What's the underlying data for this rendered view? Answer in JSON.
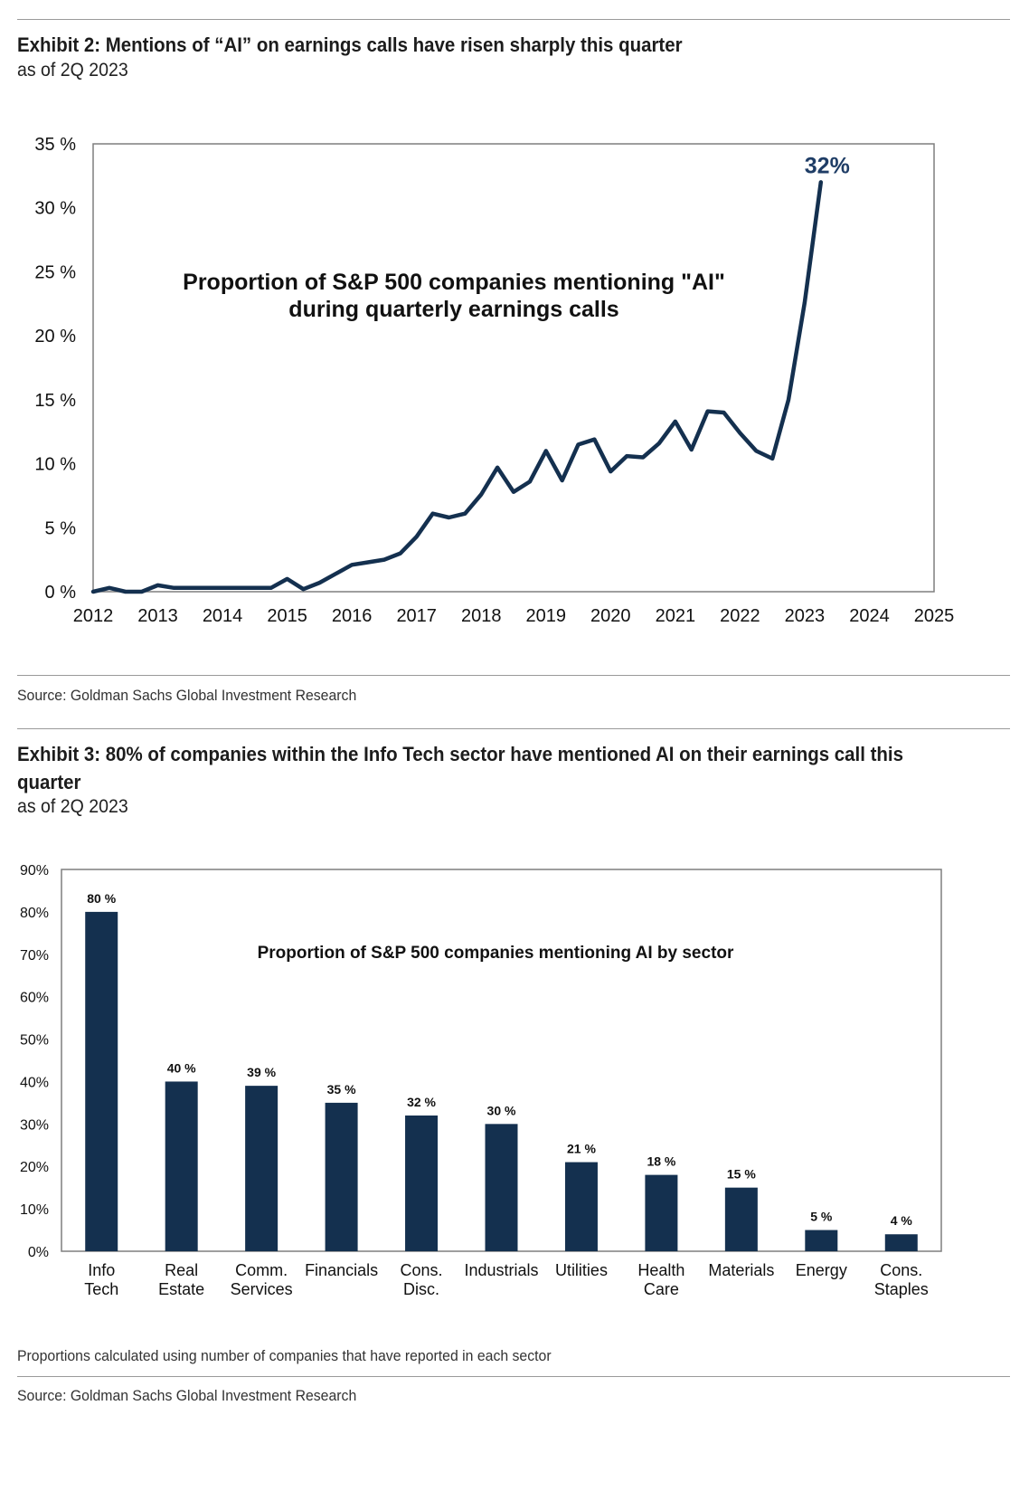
{
  "exhibit2": {
    "title": "Exhibit 2: Mentions of “AI” on earnings calls have risen sharply this quarter",
    "subtitle": "as of 2Q 2023",
    "source": "Source: Goldman Sachs Global Investment Research"
  },
  "exhibit3": {
    "title": "Exhibit 3: 80% of companies within the Info Tech sector have mentioned AI on their earnings call this quarter",
    "subtitle": "as of 2Q 2023",
    "note": "Proportions calculated using number of companies that have reported in each sector",
    "source": "Source: Goldman Sachs Global Investment Research"
  },
  "colors": {
    "line": "#14304f",
    "bar": "#14304f",
    "axis": "#7f7f7f"
  },
  "chart_data": [
    {
      "type": "line",
      "title_lines": [
        "Proportion of S&P 500 companies mentioning \"AI\"",
        "during quarterly earnings calls"
      ],
      "annotation": "32%",
      "xlim": [
        2012,
        2025
      ],
      "ylim": [
        0,
        35
      ],
      "x_ticks": [
        "2012",
        "2013",
        "2014",
        "2015",
        "2016",
        "2017",
        "2018",
        "2019",
        "2020",
        "2021",
        "2022",
        "2023",
        "2024",
        "2025"
      ],
      "y_ticks": [
        "0 %",
        "5 %",
        "10 %",
        "15 %",
        "20 %",
        "25 %",
        "30 %",
        "35 %"
      ],
      "x": [
        2012.0,
        2012.25,
        2012.5,
        2012.75,
        2013.0,
        2013.25,
        2013.5,
        2013.75,
        2014.0,
        2014.25,
        2014.5,
        2014.75,
        2015.0,
        2015.25,
        2015.5,
        2015.75,
        2016.0,
        2016.25,
        2016.5,
        2016.75,
        2017.0,
        2017.25,
        2017.5,
        2017.75,
        2018.0,
        2018.25,
        2018.5,
        2018.75,
        2019.0,
        2019.25,
        2019.5,
        2019.75,
        2020.0,
        2020.25,
        2020.5,
        2020.75,
        2021.0,
        2021.25,
        2021.5,
        2021.75,
        2022.0,
        2022.25,
        2022.5,
        2022.75,
        2023.0,
        2023.25
      ],
      "y": [
        0.0,
        0.3,
        0.0,
        0.0,
        0.5,
        0.3,
        0.3,
        0.3,
        0.3,
        0.3,
        0.3,
        0.3,
        1.0,
        0.2,
        0.7,
        1.4,
        2.1,
        2.3,
        2.5,
        3.0,
        4.3,
        6.1,
        5.8,
        6.1,
        7.6,
        9.7,
        7.8,
        8.6,
        11.0,
        8.7,
        11.5,
        11.9,
        9.4,
        10.6,
        10.5,
        11.6,
        13.3,
        11.1,
        14.1,
        14.0,
        12.4,
        11.0,
        10.4,
        15.0,
        22.6,
        32.0
      ]
    },
    {
      "type": "bar",
      "title": "Proportion of S&P 500 companies mentioning AI by sector",
      "ylim": [
        0,
        90
      ],
      "y_ticks": [
        "0%",
        "10%",
        "20%",
        "30%",
        "40%",
        "50%",
        "60%",
        "70%",
        "80%",
        "90%"
      ],
      "categories": [
        [
          "Info",
          "Tech"
        ],
        [
          "Real",
          "Estate"
        ],
        [
          "Comm.",
          "Services"
        ],
        [
          "Financials"
        ],
        [
          "Cons.",
          "Disc."
        ],
        [
          "Industrials"
        ],
        [
          "Utilities"
        ],
        [
          "Health",
          "Care"
        ],
        [
          "Materials"
        ],
        [
          "Energy"
        ],
        [
          "Cons.",
          "Staples"
        ]
      ],
      "values": [
        80,
        40,
        39,
        35,
        32,
        30,
        21,
        18,
        15,
        5,
        4
      ],
      "data_labels": [
        "80 %",
        "40 %",
        "39 %",
        "35 %",
        "32 %",
        "30 %",
        "21 %",
        "18 %",
        "15 %",
        "5 %",
        "4 %"
      ]
    }
  ]
}
